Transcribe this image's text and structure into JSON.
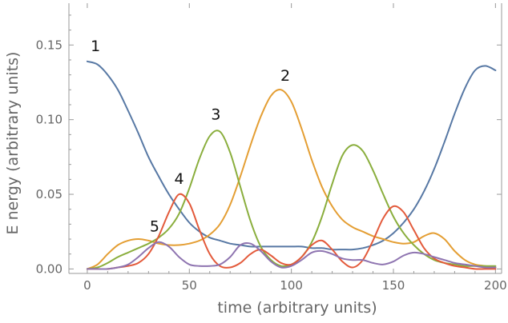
{
  "chart_data": {
    "type": "line",
    "xlabel": "time (arbitrary units)",
    "ylabel": "E nergy (arbitrary units)",
    "xlim": [
      -9,
      203
    ],
    "ylim": [
      -0.003,
      0.178
    ],
    "xticks": [
      0,
      50,
      100,
      150,
      200
    ],
    "yticks": [
      0.0,
      0.05,
      0.1,
      0.15
    ],
    "ytick_labels": [
      "0.00",
      "0.05",
      "0.10",
      "0.15"
    ],
    "grid": false,
    "frame": "left-bottom-right",
    "series": [
      {
        "color": "#5778a4",
        "x": [
          0,
          5,
          10,
          15,
          20,
          25,
          30,
          35,
          40,
          45,
          50,
          55,
          60,
          65,
          70,
          75,
          80,
          85,
          90,
          95,
          100,
          105,
          110,
          115,
          120,
          125,
          130,
          135,
          140,
          145,
          150,
          155,
          160,
          165,
          170,
          175,
          180,
          185,
          190,
          195,
          200
        ],
        "values": [
          0.139,
          0.137,
          0.13,
          0.12,
          0.106,
          0.091,
          0.075,
          0.062,
          0.05,
          0.04,
          0.031,
          0.025,
          0.021,
          0.019,
          0.017,
          0.016,
          0.015,
          0.015,
          0.015,
          0.015,
          0.015,
          0.015,
          0.014,
          0.014,
          0.013,
          0.013,
          0.013,
          0.014,
          0.016,
          0.019,
          0.024,
          0.031,
          0.04,
          0.052,
          0.067,
          0.085,
          0.104,
          0.121,
          0.133,
          0.136,
          0.133
        ]
      },
      {
        "color": "#e49e33",
        "x": [
          0,
          5,
          10,
          15,
          20,
          25,
          30,
          35,
          40,
          45,
          50,
          55,
          60,
          65,
          70,
          75,
          80,
          85,
          90,
          95,
          100,
          105,
          110,
          115,
          120,
          125,
          130,
          135,
          140,
          145,
          150,
          155,
          160,
          165,
          170,
          175,
          180,
          185,
          190,
          195,
          200
        ],
        "values": [
          0.0,
          0.003,
          0.01,
          0.016,
          0.019,
          0.02,
          0.019,
          0.017,
          0.016,
          0.016,
          0.017,
          0.019,
          0.023,
          0.03,
          0.043,
          0.062,
          0.083,
          0.102,
          0.116,
          0.12,
          0.112,
          0.094,
          0.073,
          0.055,
          0.042,
          0.033,
          0.028,
          0.025,
          0.022,
          0.02,
          0.018,
          0.017,
          0.018,
          0.022,
          0.024,
          0.02,
          0.012,
          0.006,
          0.003,
          0.002,
          0.001
        ]
      },
      {
        "color": "#8aae3d",
        "x": [
          0,
          5,
          10,
          15,
          20,
          25,
          30,
          35,
          40,
          45,
          50,
          55,
          60,
          65,
          70,
          75,
          80,
          85,
          90,
          95,
          100,
          105,
          110,
          115,
          120,
          125,
          130,
          135,
          140,
          145,
          150,
          155,
          160,
          165,
          170,
          175,
          180,
          185,
          190,
          195,
          200
        ],
        "values": [
          0.0,
          0.001,
          0.004,
          0.008,
          0.011,
          0.014,
          0.017,
          0.021,
          0.027,
          0.037,
          0.054,
          0.074,
          0.089,
          0.092,
          0.078,
          0.055,
          0.032,
          0.015,
          0.006,
          0.002,
          0.003,
          0.008,
          0.018,
          0.035,
          0.057,
          0.076,
          0.083,
          0.079,
          0.066,
          0.05,
          0.035,
          0.024,
          0.016,
          0.01,
          0.006,
          0.004,
          0.003,
          0.002,
          0.002,
          0.002,
          0.002
        ]
      },
      {
        "color": "#e35a3b",
        "x": [
          0,
          5,
          10,
          15,
          20,
          25,
          30,
          35,
          40,
          45,
          50,
          55,
          60,
          65,
          70,
          75,
          80,
          85,
          90,
          95,
          100,
          105,
          110,
          115,
          120,
          125,
          130,
          135,
          140,
          145,
          150,
          155,
          160,
          165,
          170,
          175,
          180,
          185,
          190,
          195,
          200
        ],
        "values": [
          0.0,
          0.0,
          0.0,
          0.001,
          0.002,
          0.004,
          0.01,
          0.022,
          0.038,
          0.05,
          0.044,
          0.026,
          0.01,
          0.002,
          0.001,
          0.004,
          0.01,
          0.013,
          0.009,
          0.004,
          0.003,
          0.008,
          0.016,
          0.019,
          0.013,
          0.005,
          0.001,
          0.006,
          0.019,
          0.034,
          0.042,
          0.038,
          0.026,
          0.014,
          0.007,
          0.004,
          0.002,
          0.001,
          0.0,
          0.0,
          0.0
        ]
      },
      {
        "color": "#8e74b0",
        "x": [
          0,
          5,
          10,
          15,
          20,
          25,
          30,
          35,
          40,
          45,
          50,
          55,
          60,
          65,
          70,
          75,
          80,
          85,
          90,
          95,
          100,
          105,
          110,
          115,
          120,
          125,
          130,
          135,
          140,
          145,
          150,
          155,
          160,
          165,
          170,
          175,
          180,
          185,
          190,
          195,
          200
        ],
        "values": [
          0.0,
          0.0,
          0.0,
          0.001,
          0.003,
          0.008,
          0.014,
          0.018,
          0.015,
          0.008,
          0.003,
          0.002,
          0.002,
          0.003,
          0.008,
          0.016,
          0.017,
          0.012,
          0.005,
          0.001,
          0.002,
          0.006,
          0.011,
          0.012,
          0.01,
          0.007,
          0.006,
          0.006,
          0.004,
          0.003,
          0.005,
          0.009,
          0.011,
          0.01,
          0.008,
          0.006,
          0.004,
          0.003,
          0.002,
          0.001,
          0.001
        ]
      }
    ],
    "annotations": [
      {
        "text": "1",
        "x": 4,
        "y": 0.146
      },
      {
        "text": "2",
        "x": 97,
        "y": 0.126
      },
      {
        "text": "3",
        "x": 63,
        "y": 0.1
      },
      {
        "text": "4",
        "x": 45,
        "y": 0.057
      },
      {
        "text": "5",
        "x": 33,
        "y": 0.025
      }
    ]
  }
}
